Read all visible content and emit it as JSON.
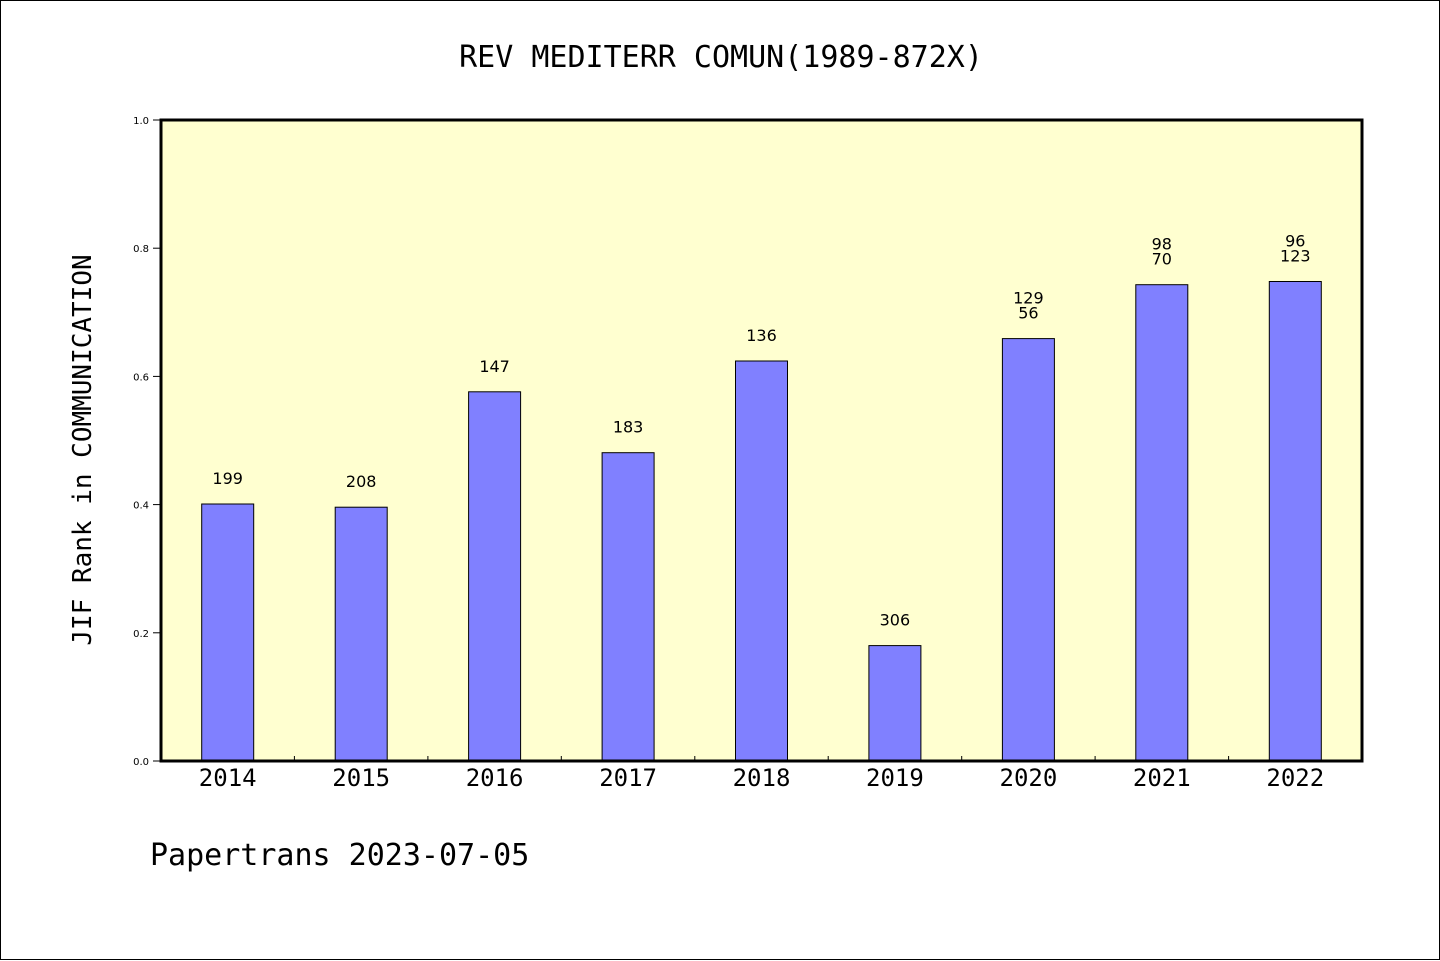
{
  "chart_data": {
    "type": "bar",
    "title": "REV MEDITERR COMUN(1989-872X)",
    "ylabel": "JIF Rank in COMMUNICATION",
    "xlabel": "",
    "categories": [
      "2014",
      "2015",
      "2016",
      "2017",
      "2018",
      "2019",
      "2020",
      "2021",
      "2022"
    ],
    "values": [
      0.401,
      0.396,
      0.576,
      0.481,
      0.624,
      0.18,
      0.659,
      0.743,
      0.748
    ],
    "bar_labels": [
      [
        "199"
      ],
      [
        "208"
      ],
      [
        "147"
      ],
      [
        "183"
      ],
      [
        "136"
      ],
      [
        "306"
      ],
      [
        "129",
        "56"
      ],
      [
        "98",
        "70"
      ],
      [
        "96",
        "123"
      ]
    ],
    "ylim": [
      0,
      1.0
    ],
    "yticks": [
      "0.0",
      "0.2",
      "0.4",
      "0.6",
      "0.8",
      "1.0"
    ],
    "grid": false,
    "legend": "none",
    "colors": {
      "bar_fill": "#8080ff",
      "plot_background": "#ffffd0",
      "axis": "#000000"
    }
  },
  "footer": "Papertrans 2023-07-05"
}
